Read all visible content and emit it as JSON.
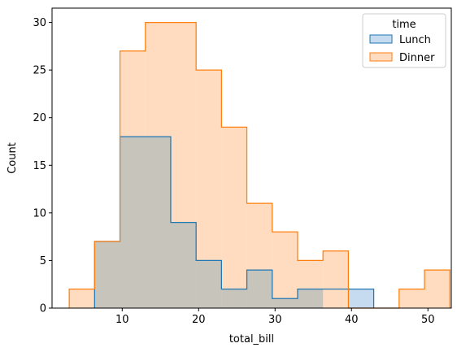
{
  "chart_data": {
    "type": "histogram",
    "title": "",
    "xlabel": "total_bill",
    "ylabel": "Count",
    "xlim": [
      0.82,
      53.06
    ],
    "ylim": [
      0,
      31.5
    ],
    "xticks": [
      10,
      20,
      30,
      40,
      50
    ],
    "yticks": [
      0,
      5,
      10,
      15,
      20,
      25,
      30
    ],
    "bin_edges": [
      3.07,
      6.39,
      9.71,
      13.03,
      16.35,
      19.67,
      22.99,
      26.31,
      29.63,
      32.95,
      36.27,
      39.59,
      42.91,
      46.23,
      49.55,
      50.81
    ],
    "series": [
      {
        "name": "Lunch",
        "color": "#1f77b4",
        "fill": "#c6dbef",
        "bins": [
          {
            "x0": 6.39,
            "x1": 9.71,
            "count": 7
          },
          {
            "x0": 9.71,
            "x1": 16.35,
            "count": 18
          },
          {
            "x0": 16.35,
            "x1": 19.67,
            "count": 9
          },
          {
            "x0": 19.67,
            "x1": 22.99,
            "count": 5
          },
          {
            "x0": 22.99,
            "x1": 26.31,
            "count": 2
          },
          {
            "x0": 26.31,
            "x1": 29.63,
            "count": 4
          },
          {
            "x0": 29.63,
            "x1": 32.95,
            "count": 1
          },
          {
            "x0": 32.95,
            "x1": 36.27,
            "count": 2
          },
          {
            "x0": 39.59,
            "x1": 42.91,
            "count": 2
          }
        ]
      },
      {
        "name": "Dinner",
        "color": "#ff7f0e",
        "fill": "#ffdcbf",
        "bins": [
          {
            "x0": 3.07,
            "x1": 6.39,
            "count": 2
          },
          {
            "x0": 6.39,
            "x1": 9.71,
            "count": 7
          },
          {
            "x0": 9.71,
            "x1": 13.03,
            "count": 27
          },
          {
            "x0": 13.03,
            "x1": 19.67,
            "count": 30
          },
          {
            "x0": 19.67,
            "x1": 22.99,
            "count": 25
          },
          {
            "x0": 22.99,
            "x1": 26.31,
            "count": 19
          },
          {
            "x0": 26.31,
            "x1": 29.63,
            "count": 11
          },
          {
            "x0": 29.63,
            "x1": 32.95,
            "count": 8
          },
          {
            "x0": 32.95,
            "x1": 36.27,
            "count": 5
          },
          {
            "x0": 36.27,
            "x1": 39.59,
            "count": 6
          },
          {
            "x0": 39.59,
            "x1": 46.23,
            "count": 0
          },
          {
            "x0": 46.23,
            "x1": 49.55,
            "count": 2
          },
          {
            "x0": 49.55,
            "x1": 52.87,
            "count": 4
          }
        ]
      }
    ],
    "overlap_color": "#c7c4bc",
    "legend": {
      "title": "time",
      "placement": "upper-right",
      "entries": [
        "Lunch",
        "Dinner"
      ]
    },
    "grid": false
  }
}
